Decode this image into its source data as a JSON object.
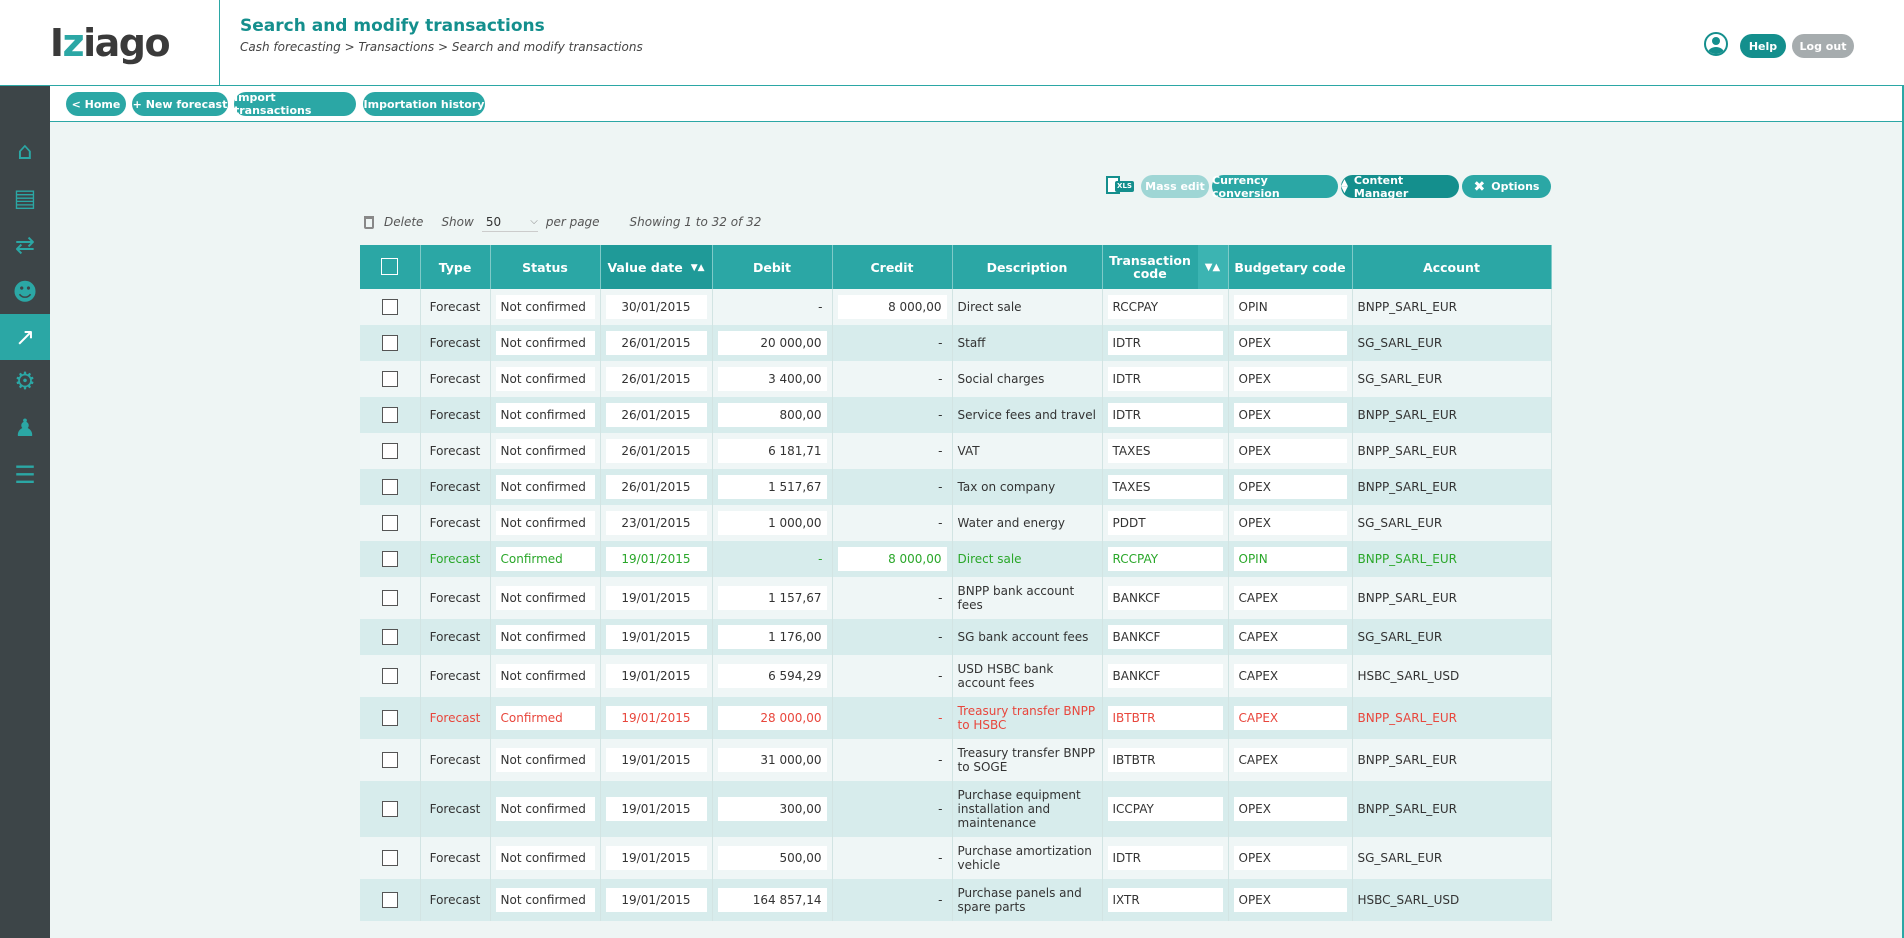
{
  "app": {
    "logo_prefix": "I",
    "logo_z": "z",
    "logo_suffix": "iago"
  },
  "header": {
    "title": "Search and modify transactions",
    "breadcrumb": "Cash forecasting > Transactions > Search and modify transactions",
    "help_label": "Help",
    "logout_label": "Log out"
  },
  "sidebar": {
    "items": [
      {
        "icon": "home-icon",
        "glyph": "⌂"
      },
      {
        "icon": "document-icon",
        "glyph": "▤"
      },
      {
        "icon": "money-transfer-icon",
        "glyph": "⇄"
      },
      {
        "icon": "team-icon",
        "glyph": "☻"
      },
      {
        "icon": "chart-icon",
        "glyph": "↗"
      },
      {
        "icon": "gear-icon",
        "glyph": "⚙"
      },
      {
        "icon": "user-settings-icon",
        "glyph": "♟"
      },
      {
        "icon": "id-card-icon",
        "glyph": "☰"
      }
    ],
    "active_index": 4
  },
  "nav": {
    "home": "< Home",
    "new_forecast": "+ New forecast",
    "import": "Import transactions",
    "history": "Importation history"
  },
  "toolbar": {
    "xls": "XLS",
    "mass_edit": "Mass edit",
    "currency_conversion": "Currency conversion",
    "content_manager": "Content Manager",
    "options": "Options"
  },
  "list": {
    "delete": "Delete",
    "show": "Show",
    "per_page_value": "50",
    "per_page": "per page",
    "showing": "Showing 1 to 32 of 32"
  },
  "table": {
    "columns": [
      "Type",
      "Status",
      "Value date",
      "Debit",
      "Credit",
      "Description",
      "Transaction code",
      "Budgetary code",
      "Account"
    ],
    "rows": [
      {
        "type": "Forecast",
        "status": "Not confirmed",
        "date": "30/01/2015",
        "debit": "-",
        "credit": "8 000,00",
        "desc": "Direct sale",
        "tcode": "RCCPAY",
        "bcode": "OPIN",
        "account": "BNPP_SARL_EUR",
        "tone": "normal"
      },
      {
        "type": "Forecast",
        "status": "Not confirmed",
        "date": "26/01/2015",
        "debit": "20 000,00",
        "credit": "-",
        "desc": "Staff",
        "tcode": "IDTR",
        "bcode": "OPEX",
        "account": "SG_SARL_EUR",
        "tone": "normal"
      },
      {
        "type": "Forecast",
        "status": "Not confirmed",
        "date": "26/01/2015",
        "debit": "3 400,00",
        "credit": "-",
        "desc": "Social charges",
        "tcode": "IDTR",
        "bcode": "OPEX",
        "account": "SG_SARL_EUR",
        "tone": "normal"
      },
      {
        "type": "Forecast",
        "status": "Not confirmed",
        "date": "26/01/2015",
        "debit": "800,00",
        "credit": "-",
        "desc": "Service fees and travel",
        "tcode": "IDTR",
        "bcode": "OPEX",
        "account": "BNPP_SARL_EUR",
        "tone": "normal"
      },
      {
        "type": "Forecast",
        "status": "Not confirmed",
        "date": "26/01/2015",
        "debit": "6 181,71",
        "credit": "-",
        "desc": "VAT",
        "tcode": "TAXES",
        "bcode": "OPEX",
        "account": "BNPP_SARL_EUR",
        "tone": "normal"
      },
      {
        "type": "Forecast",
        "status": "Not confirmed",
        "date": "26/01/2015",
        "debit": "1 517,67",
        "credit": "-",
        "desc": "Tax on company",
        "tcode": "TAXES",
        "bcode": "OPEX",
        "account": "BNPP_SARL_EUR",
        "tone": "normal"
      },
      {
        "type": "Forecast",
        "status": "Not confirmed",
        "date": "23/01/2015",
        "debit": "1 000,00",
        "credit": "-",
        "desc": "Water and energy",
        "tcode": "PDDT",
        "bcode": "OPEX",
        "account": "SG_SARL_EUR",
        "tone": "normal"
      },
      {
        "type": "Forecast",
        "status": "Confirmed",
        "date": "19/01/2015",
        "debit": "-",
        "credit": "8 000,00",
        "desc": "Direct sale",
        "tcode": "RCCPAY",
        "bcode": "OPIN",
        "account": "BNPP_SARL_EUR",
        "tone": "green"
      },
      {
        "type": "Forecast",
        "status": "Not confirmed",
        "date": "19/01/2015",
        "debit": "1 157,67",
        "credit": "-",
        "desc": "BNPP bank account fees",
        "tcode": "BANKCF",
        "bcode": "CAPEX",
        "account": "BNPP_SARL_EUR",
        "tone": "normal"
      },
      {
        "type": "Forecast",
        "status": "Not confirmed",
        "date": "19/01/2015",
        "debit": "1 176,00",
        "credit": "-",
        "desc": "SG bank account fees",
        "tcode": "BANKCF",
        "bcode": "CAPEX",
        "account": "SG_SARL_EUR",
        "tone": "normal"
      },
      {
        "type": "Forecast",
        "status": "Not confirmed",
        "date": "19/01/2015",
        "debit": "6 594,29",
        "credit": "-",
        "desc": "USD HSBC bank account fees",
        "tcode": "BANKCF",
        "bcode": "CAPEX",
        "account": "HSBC_SARL_USD",
        "tone": "normal"
      },
      {
        "type": "Forecast",
        "status": "Confirmed",
        "date": "19/01/2015",
        "debit": "28 000,00",
        "credit": "-",
        "desc": "Treasury transfer BNPP to HSBC",
        "tcode": "IBTBTR",
        "bcode": "CAPEX",
        "account": "BNPP_SARL_EUR",
        "tone": "red"
      },
      {
        "type": "Forecast",
        "status": "Not confirmed",
        "date": "19/01/2015",
        "debit": "31 000,00",
        "credit": "-",
        "desc": "Treasury transfer BNPP to SOGE",
        "tcode": "IBTBTR",
        "bcode": "CAPEX",
        "account": "BNPP_SARL_EUR",
        "tone": "normal"
      },
      {
        "type": "Forecast",
        "status": "Not confirmed",
        "date": "19/01/2015",
        "debit": "300,00",
        "credit": "-",
        "desc": "Purchase equipment installation and maintenance",
        "tcode": "ICCPAY",
        "bcode": "OPEX",
        "account": "BNPP_SARL_EUR",
        "tone": "normal"
      },
      {
        "type": "Forecast",
        "status": "Not confirmed",
        "date": "19/01/2015",
        "debit": "500,00",
        "credit": "-",
        "desc": "Purchase amortization vehicle",
        "tcode": "IDTR",
        "bcode": "OPEX",
        "account": "SG_SARL_EUR",
        "tone": "normal"
      },
      {
        "type": "Forecast",
        "status": "Not confirmed",
        "date": "19/01/2015",
        "debit": "164 857,14",
        "credit": "-",
        "desc": "Purchase panels and spare parts",
        "tcode": "IXTR",
        "bcode": "OPEX",
        "account": "HSBC_SARL_USD",
        "tone": "normal"
      }
    ]
  }
}
